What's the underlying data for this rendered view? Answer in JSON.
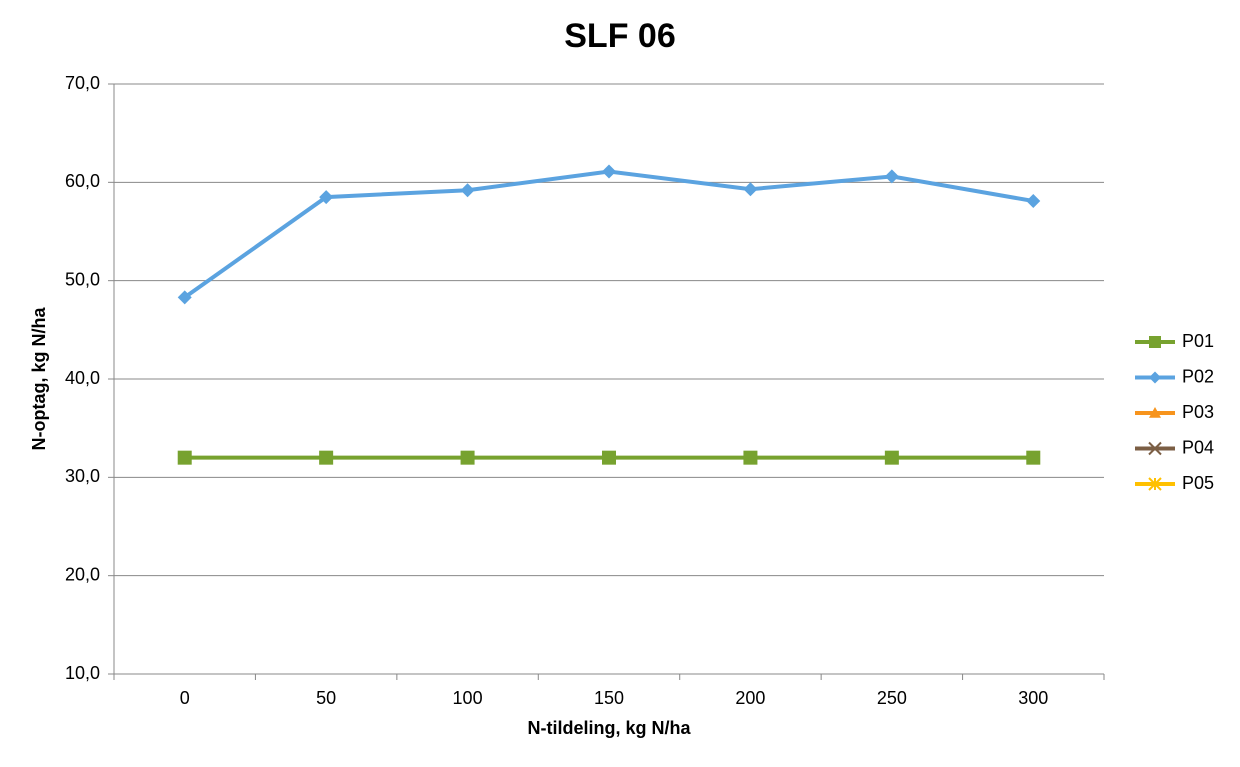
{
  "chart_data": {
    "type": "line",
    "title": "SLF 06",
    "x_label": "N-tildeling, kg N/ha",
    "y_label": "N-optag, kg N/ha",
    "categories": [
      "0",
      "50",
      "100",
      "150",
      "200",
      "250",
      "300"
    ],
    "series": [
      {
        "name": "P01",
        "color": "#77a22f",
        "marker": "square",
        "values": [
          32.0,
          32.0,
          32.0,
          32.0,
          32.0,
          32.0,
          32.0
        ]
      },
      {
        "name": "P02",
        "color": "#5ba3e0",
        "marker": "diamond",
        "values": [
          48.3,
          58.5,
          59.2,
          61.1,
          59.3,
          60.6,
          58.1
        ]
      },
      {
        "name": "P03",
        "color": "#f7941d",
        "marker": "triangle",
        "values": [
          null,
          null,
          null,
          null,
          null,
          null,
          null
        ]
      },
      {
        "name": "P04",
        "color": "#7b5e44",
        "marker": "x",
        "values": [
          null,
          null,
          null,
          null,
          null,
          null,
          null
        ]
      },
      {
        "name": "P05",
        "color": "#ffc000",
        "marker": "star",
        "values": [
          null,
          null,
          null,
          null,
          null,
          null,
          null
        ]
      }
    ],
    "ylim": [
      10,
      70
    ],
    "yticks": [
      {
        "value": 10,
        "label": "10,0"
      },
      {
        "value": 20,
        "label": "20,0"
      },
      {
        "value": 30,
        "label": "30,0"
      },
      {
        "value": 40,
        "label": "40,0"
      },
      {
        "value": 50,
        "label": "50,0"
      },
      {
        "value": 60,
        "label": "60,0"
      },
      {
        "value": 70,
        "label": "70,0"
      }
    ],
    "grid": true,
    "legend": "right"
  }
}
